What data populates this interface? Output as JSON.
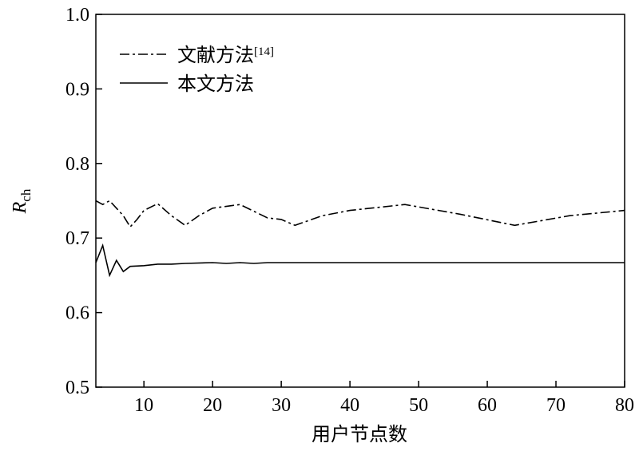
{
  "chart_data": {
    "type": "line",
    "x_label": "用户节点数",
    "y_label": {
      "main": "R",
      "sub": "ch"
    },
    "xlim": [
      3,
      80
    ],
    "xticks": [
      10,
      20,
      30,
      40,
      50,
      60,
      70,
      80
    ],
    "ylim": [
      0.5,
      1.0
    ],
    "yticks": [
      0.5,
      0.6,
      0.7,
      0.8,
      0.9,
      {
        "value": 1.0,
        "label": "1.0"
      }
    ],
    "legend": "upper left",
    "series": [
      {
        "name": "文献方法",
        "citation": "[14]",
        "color": "#000000",
        "style": "dashdot",
        "x": [
          3,
          4,
          5,
          6,
          7,
          8,
          9,
          10,
          12,
          14,
          16,
          18,
          20,
          24,
          28,
          30,
          32,
          36,
          40,
          48,
          56,
          64,
          72,
          80
        ],
        "values": [
          0.75,
          0.745,
          0.75,
          0.74,
          0.73,
          0.715,
          0.725,
          0.737,
          0.746,
          0.73,
          0.717,
          0.73,
          0.74,
          0.745,
          0.727,
          0.725,
          0.717,
          0.73,
          0.737,
          0.745,
          0.732,
          0.717,
          0.73,
          0.737
        ]
      },
      {
        "name": "本文方法",
        "color": "#000000",
        "style": "solid",
        "x": [
          3,
          4,
          5,
          6,
          7,
          8,
          10,
          12,
          14,
          16,
          20,
          22,
          24,
          26,
          28,
          80
        ],
        "values": [
          0.667,
          0.69,
          0.65,
          0.67,
          0.655,
          0.662,
          0.663,
          0.665,
          0.665,
          0.666,
          0.667,
          0.666,
          0.667,
          0.666,
          0.667,
          0.667
        ]
      }
    ]
  }
}
